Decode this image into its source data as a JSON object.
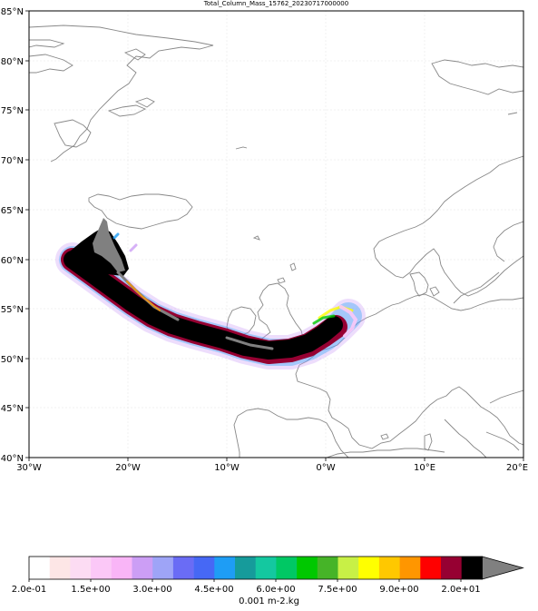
{
  "title": "Total_Column_Mass_15762_20230717000000",
  "lat_labels": [
    "85°N",
    "80°N",
    "75°N",
    "70°N",
    "65°N",
    "60°N",
    "55°N",
    "50°N",
    "45°N",
    "40°N"
  ],
  "lon_labels": [
    "30°W",
    "20°W",
    "10°W",
    "0°W",
    "10°E",
    "20°E"
  ],
  "extent": {
    "lon_min": -30,
    "lon_max": 20,
    "lat_min": 40,
    "lat_max": 85
  },
  "colorbar": {
    "colors": [
      "#ffffff",
      "#fde6e6",
      "#fcdcf3",
      "#fbc8f7",
      "#f9b5f7",
      "#cc9ef5",
      "#9ea4f7",
      "#6a6cf5",
      "#4668f5",
      "#1e9df5",
      "#169b9b",
      "#14c8a0",
      "#00c864",
      "#00c800",
      "#46b428",
      "#c8f046",
      "#ffff00",
      "#ffc800",
      "#ff9600",
      "#ff0000",
      "#960032",
      "#000000",
      "#808080"
    ],
    "tick_labels": [
      "2.0e-01",
      "1.5e+00",
      "3.0e+00",
      "4.5e+00",
      "6.0e+00",
      "7.5e+00",
      "9.0e+00",
      "2.0e+01"
    ],
    "units": "0.001 m-2.kg",
    "extend": "max"
  },
  "plume_colors": {
    "core": "#000000",
    "edge": "#960032",
    "high": "#808080",
    "fringe": [
      "#ff9600",
      "#ffff00",
      "#00c800",
      "#1e9df5",
      "#cc9ef5",
      "#fbc8f7"
    ]
  }
}
